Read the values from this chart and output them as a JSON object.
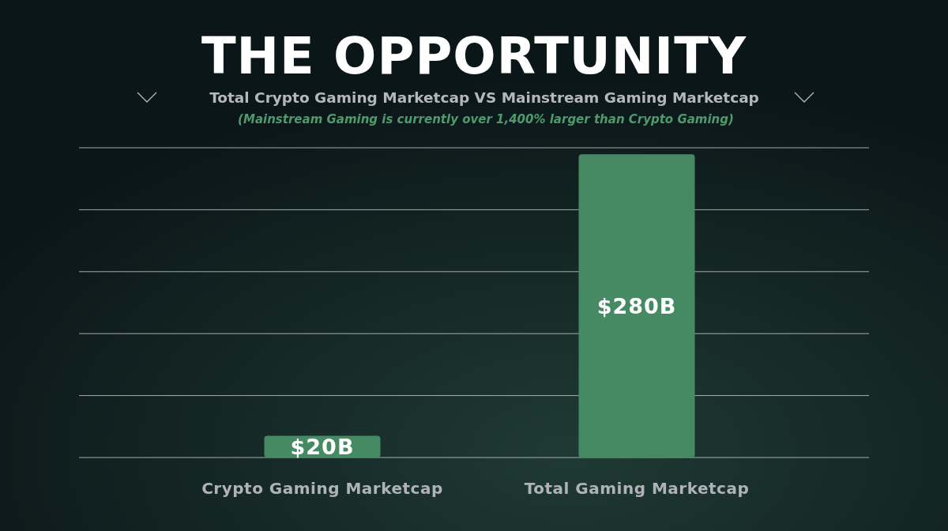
{
  "chart_data": {
    "type": "bar",
    "title": "THE OPPORTUNITY",
    "subtitle": "Total Crypto Gaming Marketcap VS Mainstream Gaming Marketcap",
    "annotations": [
      "(Mainstream Gaming is currently over 1,400% larger than Crypto Gaming)"
    ],
    "categories": [
      "Crypto Gaming Marketcap",
      "Total Gaming Marketcap"
    ],
    "values": [
      20,
      280
    ],
    "color": "#458a62",
    "value_labels": [
      "$20B",
      "$280B"
    ],
    "ylim": [
      0,
      286
    ],
    "yticks": [
      {
        "value": 0,
        "label": null
      },
      {
        "value": 57.2,
        "label": null
      },
      {
        "value": 114.4,
        "label": null
      },
      {
        "value": 171.6,
        "label": null
      },
      {
        "value": 228.8,
        "label": null
      },
      {
        "value": 286,
        "label": null
      }
    ],
    "grid": "y",
    "tick_labels": "x"
  }
}
